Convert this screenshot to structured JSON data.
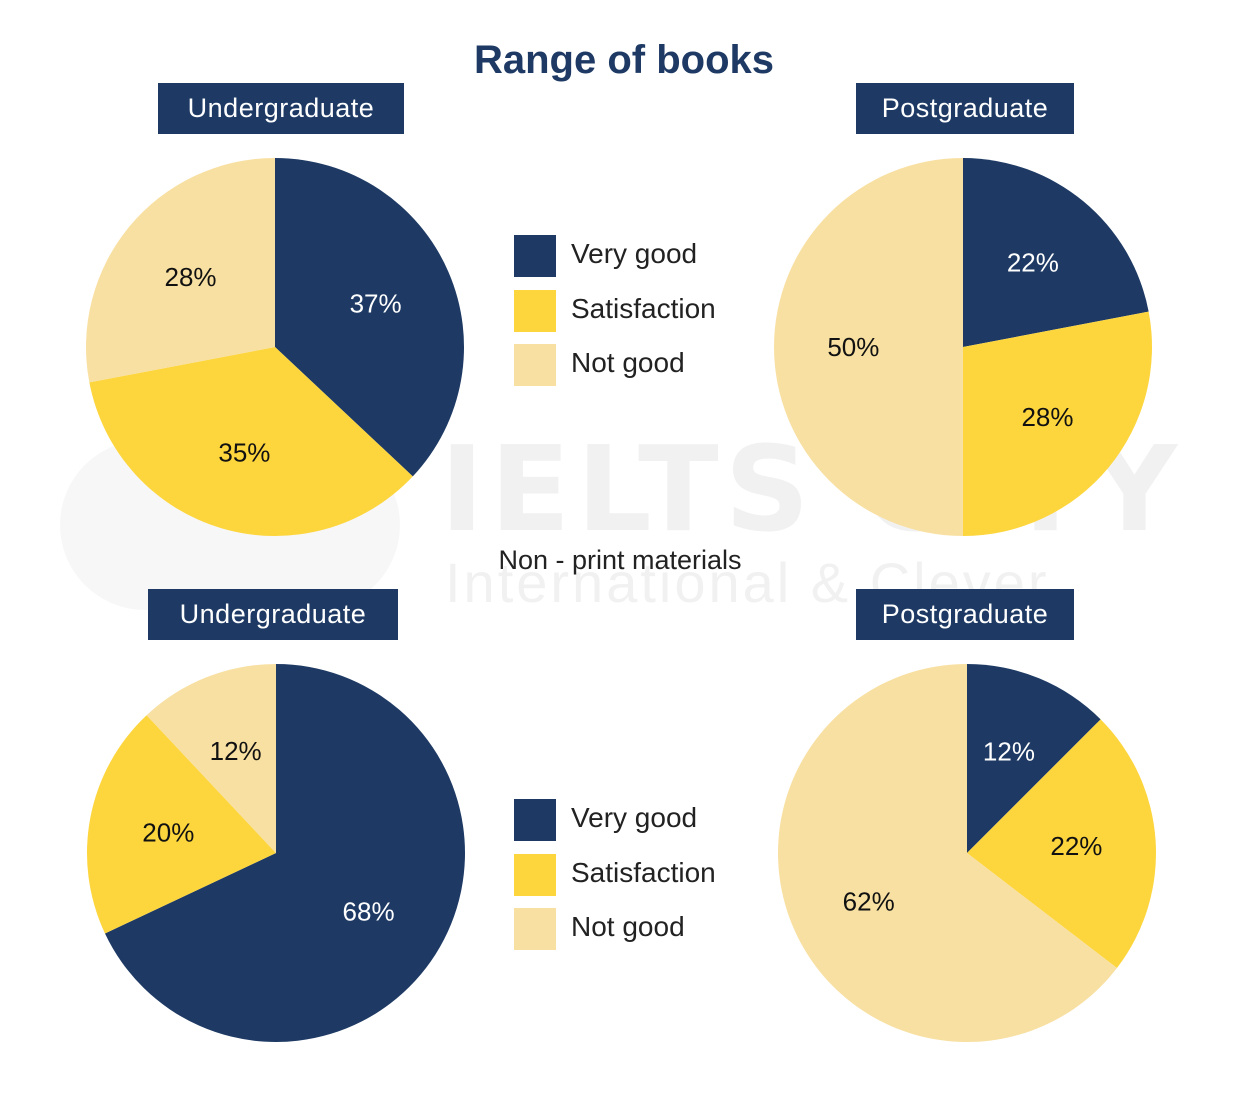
{
  "title": "Range of books",
  "subtitle": "Non - print materials",
  "watermark": {
    "big": "IELTS CITY",
    "small": "International & Clever"
  },
  "colors": {
    "very_good": "#1e3a64",
    "satisfaction": "#fdd53d",
    "not_good": "#f8e0a2"
  },
  "legend": [
    {
      "label": "Very good",
      "color": "#1e3a64"
    },
    {
      "label": "Satisfaction",
      "color": "#fdd53d"
    },
    {
      "label": "Not good",
      "color": "#f8e0a2"
    }
  ],
  "chart_data": [
    {
      "type": "pie",
      "title": "Range of books",
      "subtitle": "Undergraduate",
      "slices": [
        {
          "label": "Very good",
          "value": 37,
          "text": "37%"
        },
        {
          "label": "Satisfaction",
          "value": 35,
          "text": "35%"
        },
        {
          "label": "Not good",
          "value": 28,
          "text": "28%"
        }
      ]
    },
    {
      "type": "pie",
      "title": "Range of books",
      "subtitle": "Postgraduate",
      "slices": [
        {
          "label": "Very good",
          "value": 22,
          "text": "22%"
        },
        {
          "label": "Satisfaction",
          "value": 28,
          "text": "28%"
        },
        {
          "label": "Not good",
          "value": 50,
          "text": "50%"
        }
      ]
    },
    {
      "type": "pie",
      "title": "Non - print materials",
      "subtitle": "Undergraduate",
      "slices": [
        {
          "label": "Very good",
          "value": 68,
          "text": "68%"
        },
        {
          "label": "Satisfaction",
          "value": 20,
          "text": "20%"
        },
        {
          "label": "Not good",
          "value": 12,
          "text": "12%"
        }
      ]
    },
    {
      "type": "pie",
      "title": "Non - print materials",
      "subtitle": "Postgraduate",
      "slices": [
        {
          "label": "Very good",
          "value": 12,
          "text": "12%"
        },
        {
          "label": "Satisfaction",
          "value": 22,
          "text": "22%"
        },
        {
          "label": "Not good",
          "value": 62,
          "text": "62%"
        }
      ]
    }
  ]
}
